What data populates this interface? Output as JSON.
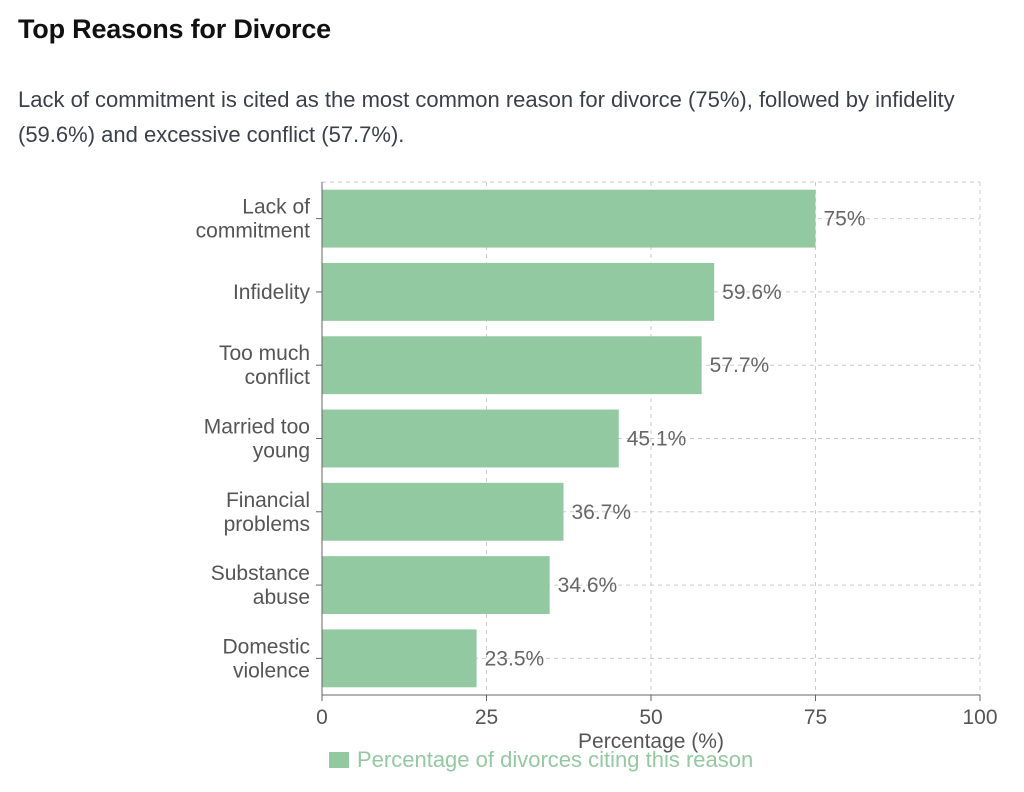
{
  "header": {
    "title": "Top Reasons for Divorce",
    "description": "Lack of commitment is cited as the most common reason for divorce (75%), followed by infidelity (59.6%) and excessive conflict (57.7%)."
  },
  "colors": {
    "bar": "#93c9a0",
    "legend_text": "#93c9a0",
    "grid": "#cccccc",
    "axis": "#666666"
  },
  "chart_data": {
    "type": "bar",
    "orientation": "horizontal",
    "categories": [
      [
        "Lack of",
        "commitment"
      ],
      [
        "Infidelity"
      ],
      [
        "Too much",
        "conflict"
      ],
      [
        "Married too",
        "young"
      ],
      [
        "Financial",
        "problems"
      ],
      [
        "Substance",
        "abuse"
      ],
      [
        "Domestic",
        "violence"
      ]
    ],
    "series": [
      {
        "name": "Percentage of divorces citing this reason",
        "values": [
          75,
          59.6,
          57.7,
          45.1,
          36.7,
          34.6,
          23.5
        ]
      }
    ],
    "value_labels": [
      "75%",
      "59.6%",
      "57.7%",
      "45.1%",
      "36.7%",
      "34.6%",
      "23.5%"
    ],
    "xlabel": "Percentage (%)",
    "ylabel": "",
    "xlim": [
      0,
      100
    ],
    "xticks": [
      0,
      25,
      50,
      75,
      100
    ],
    "grid": true,
    "legend": "bottom"
  }
}
